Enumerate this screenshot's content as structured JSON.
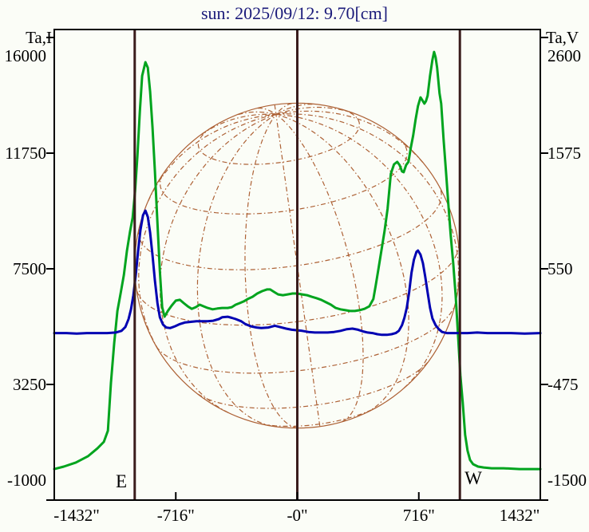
{
  "page": {
    "background": "#fbfdf7"
  },
  "chart_data": {
    "type": "line",
    "title": "sun: 2025/09/12: 9.70[cm]",
    "title_color": "#1a1a7a",
    "grid": "solar heliographic overlay",
    "legend_position": "none",
    "x_axis": {
      "unit": "arcsec",
      "range": [
        -1432,
        1432
      ],
      "tick_values": [
        -1432,
        -716,
        0,
        716,
        1432
      ],
      "tick_labels": [
        "-1432\"",
        "-716\"",
        "-0\"",
        "716\"",
        "1432\""
      ],
      "inner_tick_values": [
        -716,
        0,
        716
      ]
    },
    "y_left": {
      "axis_title": "Ta,I",
      "range": [
        16000,
        -1000
      ],
      "tick_values": [
        16000,
        11750,
        7500,
        3250,
        -1000
      ],
      "tick_labels": [
        "16000",
        "11750",
        "7500",
        "3250",
        "-1000"
      ]
    },
    "y_right": {
      "axis_title": "Ta,V",
      "range": [
        2600,
        -1500
      ],
      "tick_values": [
        2600,
        1575,
        550,
        -475,
        -1500
      ],
      "tick_labels": [
        "2600",
        "1575",
        "550",
        "-475",
        "-1500"
      ]
    },
    "annotations": {
      "east_label": "E",
      "west_label": "W",
      "vertical_lines_arcsec": [
        -958,
        0,
        958
      ],
      "line_color": "#3a1c1c"
    },
    "solar_grid": {
      "center_arcsec": 0,
      "radius_arcsec": 958,
      "b0_deg": 20,
      "p_deg": -8,
      "lat_step_deg": 20,
      "lon_step_deg": 20,
      "color": "#ad6135"
    },
    "series": [
      {
        "name": "Ta,I",
        "axis": "left",
        "color": "#00a41e",
        "points": [
          [
            -1432,
            140
          ],
          [
            -1376,
            230
          ],
          [
            -1305,
            380
          ],
          [
            -1234,
            610
          ],
          [
            -1178,
            900
          ],
          [
            -1140,
            1140
          ],
          [
            -1116,
            1550
          ],
          [
            -1098,
            3310
          ],
          [
            -1079,
            4770
          ],
          [
            -1060,
            5950
          ],
          [
            -1041,
            6590
          ],
          [
            -1022,
            7270
          ],
          [
            -1004,
            8150
          ],
          [
            -985,
            8880
          ],
          [
            -970,
            9380
          ],
          [
            -956,
            10340
          ],
          [
            -942,
            11660
          ],
          [
            -928,
            13270
          ],
          [
            -914,
            14590
          ],
          [
            -895,
            15090
          ],
          [
            -881,
            14890
          ],
          [
            -867,
            14010
          ],
          [
            -853,
            12690
          ],
          [
            -839,
            11080
          ],
          [
            -824,
            9170
          ],
          [
            -810,
            7410
          ],
          [
            -796,
            6090
          ],
          [
            -782,
            5740
          ],
          [
            -763,
            5950
          ],
          [
            -740,
            6150
          ],
          [
            -716,
            6330
          ],
          [
            -692,
            6360
          ],
          [
            -669,
            6240
          ],
          [
            -645,
            6120
          ],
          [
            -622,
            6030
          ],
          [
            -598,
            6090
          ],
          [
            -575,
            6180
          ],
          [
            -551,
            6120
          ],
          [
            -528,
            6060
          ],
          [
            -499,
            6010
          ],
          [
            -471,
            6040
          ],
          [
            -443,
            6060
          ],
          [
            -410,
            6060
          ],
          [
            -386,
            6090
          ],
          [
            -363,
            6180
          ],
          [
            -339,
            6240
          ],
          [
            -316,
            6300
          ],
          [
            -292,
            6390
          ],
          [
            -264,
            6470
          ],
          [
            -236,
            6590
          ],
          [
            -207,
            6680
          ],
          [
            -179,
            6740
          ],
          [
            -160,
            6740
          ],
          [
            -137,
            6650
          ],
          [
            -113,
            6560
          ],
          [
            -85,
            6530
          ],
          [
            -57,
            6560
          ],
          [
            -28,
            6590
          ],
          [
            0,
            6590
          ],
          [
            28,
            6560
          ],
          [
            57,
            6530
          ],
          [
            85,
            6470
          ],
          [
            113,
            6420
          ],
          [
            141,
            6360
          ],
          [
            170,
            6270
          ],
          [
            198,
            6180
          ],
          [
            226,
            6060
          ],
          [
            254,
            6010
          ],
          [
            283,
            5980
          ],
          [
            311,
            5950
          ],
          [
            339,
            5950
          ],
          [
            367,
            5980
          ],
          [
            396,
            6030
          ],
          [
            424,
            6120
          ],
          [
            448,
            6390
          ],
          [
            462,
            6880
          ],
          [
            476,
            7410
          ],
          [
            495,
            8150
          ],
          [
            514,
            8880
          ],
          [
            532,
            9700
          ],
          [
            551,
            10990
          ],
          [
            570,
            11340
          ],
          [
            589,
            11430
          ],
          [
            603,
            11310
          ],
          [
            617,
            11080
          ],
          [
            627,
            11050
          ],
          [
            641,
            11310
          ],
          [
            655,
            11430
          ],
          [
            669,
            11960
          ],
          [
            683,
            12400
          ],
          [
            697,
            12980
          ],
          [
            711,
            13480
          ],
          [
            726,
            13800
          ],
          [
            735,
            13710
          ],
          [
            749,
            13570
          ],
          [
            758,
            13660
          ],
          [
            768,
            13860
          ],
          [
            782,
            14590
          ],
          [
            796,
            15180
          ],
          [
            806,
            15470
          ],
          [
            815,
            15270
          ],
          [
            824,
            14890
          ],
          [
            838,
            13950
          ],
          [
            848,
            13570
          ],
          [
            862,
            12250
          ],
          [
            876,
            11080
          ],
          [
            890,
            9900
          ],
          [
            904,
            8740
          ],
          [
            919,
            7700
          ],
          [
            933,
            6530
          ],
          [
            947,
            5070
          ],
          [
            961,
            3600
          ],
          [
            975,
            2580
          ],
          [
            989,
            1400
          ],
          [
            1003,
            820
          ],
          [
            1018,
            470
          ],
          [
            1036,
            320
          ],
          [
            1065,
            230
          ],
          [
            1098,
            200
          ],
          [
            1145,
            170
          ],
          [
            1215,
            170
          ],
          [
            1310,
            140
          ],
          [
            1432,
            140
          ]
        ]
      },
      {
        "name": "Ta,V",
        "axis": "right",
        "color": "#0000b2",
        "points": [
          [
            -1432,
            -20
          ],
          [
            -1360,
            -20
          ],
          [
            -1300,
            -25
          ],
          [
            -1240,
            -20
          ],
          [
            -1180,
            -20
          ],
          [
            -1120,
            -20
          ],
          [
            -1070,
            -15
          ],
          [
            -1036,
            0
          ],
          [
            -1013,
            35
          ],
          [
            -994,
            105
          ],
          [
            -980,
            190
          ],
          [
            -966,
            315
          ],
          [
            -952,
            495
          ],
          [
            -938,
            705
          ],
          [
            -924,
            895
          ],
          [
            -909,
            1025
          ],
          [
            -895,
            1065
          ],
          [
            -881,
            1010
          ],
          [
            -867,
            870
          ],
          [
            -853,
            670
          ],
          [
            -839,
            445
          ],
          [
            -824,
            245
          ],
          [
            -810,
            120
          ],
          [
            -791,
            55
          ],
          [
            -772,
            30
          ],
          [
            -749,
            25
          ],
          [
            -721,
            40
          ],
          [
            -692,
            60
          ],
          [
            -660,
            75
          ],
          [
            -627,
            80
          ],
          [
            -594,
            85
          ],
          [
            -561,
            85
          ],
          [
            -528,
            85
          ],
          [
            -495,
            90
          ],
          [
            -462,
            105
          ],
          [
            -443,
            120
          ],
          [
            -410,
            125
          ],
          [
            -386,
            115
          ],
          [
            -363,
            105
          ],
          [
            -330,
            85
          ],
          [
            -306,
            60
          ],
          [
            -273,
            40
          ],
          [
            -240,
            30
          ],
          [
            -212,
            25
          ],
          [
            -170,
            30
          ],
          [
            -132,
            45
          ],
          [
            -104,
            35
          ],
          [
            -66,
            20
          ],
          [
            -33,
            10
          ],
          [
            0,
            5
          ],
          [
            28,
            0
          ],
          [
            66,
            -10
          ],
          [
            104,
            -15
          ],
          [
            141,
            -15
          ],
          [
            179,
            -15
          ],
          [
            217,
            -10
          ],
          [
            255,
            0
          ],
          [
            292,
            15
          ],
          [
            325,
            20
          ],
          [
            358,
            10
          ],
          [
            387,
            -5
          ],
          [
            415,
            -15
          ],
          [
            443,
            -20
          ],
          [
            471,
            -30
          ],
          [
            499,
            -35
          ],
          [
            528,
            -35
          ],
          [
            556,
            -30
          ],
          [
            580,
            -20
          ],
          [
            598,
            0
          ],
          [
            617,
            50
          ],
          [
            631,
            115
          ],
          [
            645,
            205
          ],
          [
            659,
            340
          ],
          [
            673,
            515
          ],
          [
            687,
            630
          ],
          [
            702,
            700
          ],
          [
            711,
            712
          ],
          [
            726,
            675
          ],
          [
            740,
            600
          ],
          [
            754,
            480
          ],
          [
            768,
            340
          ],
          [
            782,
            205
          ],
          [
            796,
            110
          ],
          [
            815,
            50
          ],
          [
            834,
            15
          ],
          [
            853,
            -10
          ],
          [
            881,
            -20
          ],
          [
            914,
            -20
          ],
          [
            952,
            -20
          ],
          [
            1003,
            -20
          ],
          [
            1060,
            -15
          ],
          [
            1120,
            -20
          ],
          [
            1190,
            -20
          ],
          [
            1260,
            -20
          ],
          [
            1340,
            -25
          ],
          [
            1432,
            -20
          ]
        ]
      }
    ]
  }
}
